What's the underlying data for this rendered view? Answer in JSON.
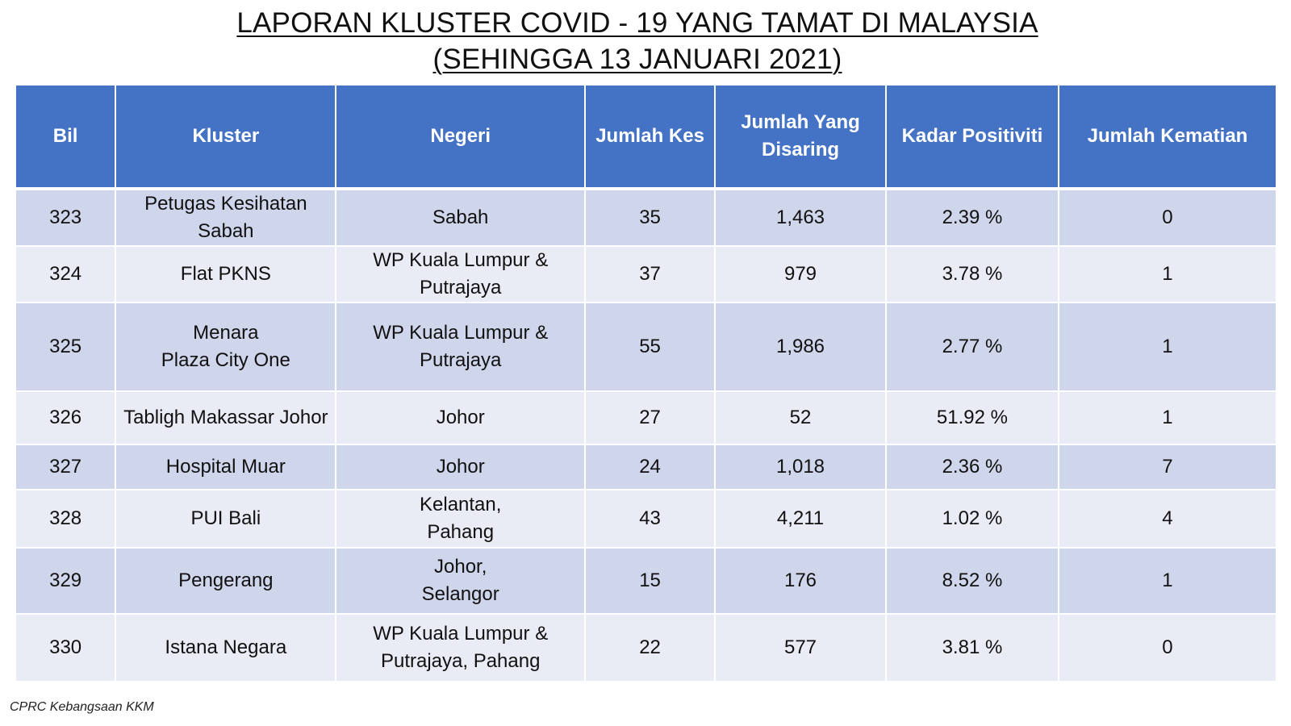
{
  "title": {
    "line1": "LAPORAN KLUSTER COVID - 19 YANG TAMAT DI MALAYSIA",
    "line2": "(SEHINGGA 13 JANUARI 2021)"
  },
  "table": {
    "headers": [
      "Bil",
      "Kluster",
      "Negeri",
      "Jumlah Kes",
      "Jumlah Yang Disaring",
      "Kadar Positiviti",
      "Jumlah Kematian"
    ],
    "rows": [
      {
        "bil": "323",
        "kluster": "Petugas Kesihatan\nSabah",
        "negeri": "Sabah",
        "kes": "35",
        "disaring": "1,463",
        "positiviti": "2.39 %",
        "kematian": "0"
      },
      {
        "bil": "324",
        "kluster": "Flat PKNS",
        "negeri": "WP Kuala Lumpur &\nPutrajaya",
        "kes": "37",
        "disaring": "979",
        "positiviti": "3.78 %",
        "kematian": "1"
      },
      {
        "bil": "325",
        "kluster": "Menara\nPlaza City One",
        "negeri": "WP Kuala Lumpur &\nPutrajaya",
        "kes": "55",
        "disaring": "1,986",
        "positiviti": "2.77 %",
        "kematian": "1"
      },
      {
        "bil": "326",
        "kluster": "Tabligh Makassar Johor",
        "negeri": "Johor",
        "kes": "27",
        "disaring": "52",
        "positiviti": "51.92 %",
        "kematian": "1"
      },
      {
        "bil": "327",
        "kluster": "Hospital Muar",
        "negeri": "Johor",
        "kes": "24",
        "disaring": "1,018",
        "positiviti": "2.36 %",
        "kematian": "7"
      },
      {
        "bil": "328",
        "kluster": "PUI Bali",
        "negeri": "Kelantan,\nPahang",
        "kes": "43",
        "disaring": "4,211",
        "positiviti": "1.02 %",
        "kematian": "4"
      },
      {
        "bil": "329",
        "kluster": "Pengerang",
        "negeri": "Johor,\nSelangor",
        "kes": "15",
        "disaring": "176",
        "positiviti": "8.52 %",
        "kematian": "1"
      },
      {
        "bil": "330",
        "kluster": "Istana Negara",
        "negeri": "WP Kuala Lumpur &\nPutrajaya, Pahang",
        "kes": "22",
        "disaring": "577",
        "positiviti": "3.81 %",
        "kematian": "0"
      }
    ]
  },
  "footer": "CPRC Kebangsaan KKM"
}
